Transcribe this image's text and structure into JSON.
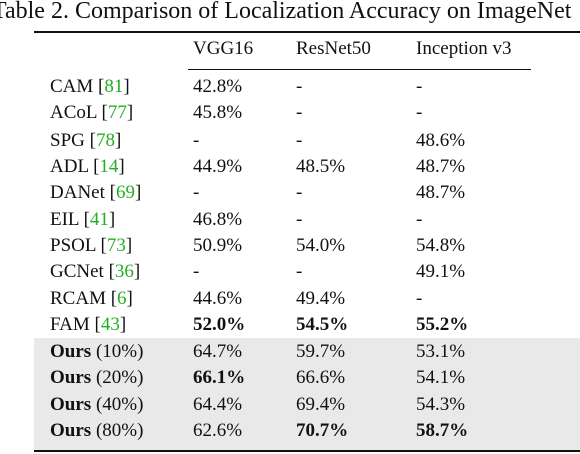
{
  "caption": "Table 2. Comparison of Localization Accuracy on ImageNet",
  "columns": [
    "VGG16",
    "ResNet50",
    "Inception v3"
  ],
  "rows": [
    {
      "method": "CAM",
      "ref": "81",
      "suffix": "",
      "vgg": "42.8%",
      "resnet": "-",
      "inception": "-"
    },
    {
      "method": "ACoL",
      "ref": "77",
      "suffix": "",
      "vgg": "45.8%",
      "resnet": "-",
      "inception": "-"
    },
    {
      "method": "SPG",
      "ref": "78",
      "suffix": "",
      "vgg": "-",
      "resnet": "-",
      "inception": "48.6%"
    },
    {
      "method": "ADL",
      "ref": "14",
      "suffix": "",
      "vgg": "44.9%",
      "resnet": "48.5%",
      "inception": "48.7%"
    },
    {
      "method": "DANet",
      "ref": "69",
      "suffix": "",
      "vgg": "-",
      "resnet": "-",
      "inception": "48.7%"
    },
    {
      "method": "EIL",
      "ref": "41",
      "suffix": "",
      "vgg": "46.8%",
      "resnet": "-",
      "inception": "-"
    },
    {
      "method": "PSOL",
      "ref": "73",
      "suffix": "",
      "vgg": "50.9%",
      "resnet": "54.0%",
      "inception": "54.8%"
    },
    {
      "method": "GCNet",
      "ref": "36",
      "suffix": "",
      "vgg": "-",
      "resnet": "-",
      "inception": "49.1%"
    },
    {
      "method": "RCAM",
      "ref": "6",
      "suffix": "",
      "vgg": "44.6%",
      "resnet": "49.4%",
      "inception": "-"
    },
    {
      "method": "FAM",
      "ref": "43",
      "suffix": "",
      "vgg": "52.0%",
      "resnet": "54.5%",
      "inception": "55.2%"
    },
    {
      "method": "Ours",
      "ref": "",
      "suffix": " (10%)",
      "vgg": "64.7%",
      "resnet": "59.7%",
      "inception": "53.1%"
    },
    {
      "method": "Ours",
      "ref": "",
      "suffix": " (20%)",
      "vgg": "66.1%",
      "resnet": "66.6%",
      "inception": "54.1%"
    },
    {
      "method": "Ours",
      "ref": "",
      "suffix": " (40%)",
      "vgg": "64.4%",
      "resnet": "69.4%",
      "inception": "54.3%"
    },
    {
      "method": "Ours",
      "ref": "",
      "suffix": " (80%)",
      "vgg": "62.6%",
      "resnet": "70.7%",
      "inception": "58.7%"
    }
  ]
}
